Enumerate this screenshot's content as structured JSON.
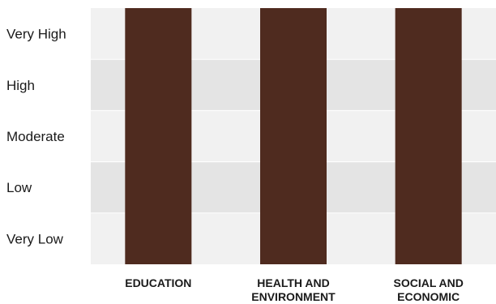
{
  "chart_data": {
    "type": "bar",
    "categories": [
      [
        "EDUCATION"
      ],
      [
        "HEALTH AND",
        "ENVIRONMENT"
      ],
      [
        "SOCIAL AND",
        "ECONOMIC"
      ]
    ],
    "levels": [
      "Very High",
      "High",
      "Moderate",
      "Low",
      "Very Low"
    ],
    "values": [
      "Very High",
      "Very High",
      "Very High"
    ],
    "title": "",
    "xlabel": "",
    "ylabel": "",
    "grid": true,
    "colors": {
      "bar": "#4f2b1f",
      "band_light": "#f1f1f1",
      "band_dark": "#e4e4e4",
      "band_divider": "#ffffff"
    }
  }
}
